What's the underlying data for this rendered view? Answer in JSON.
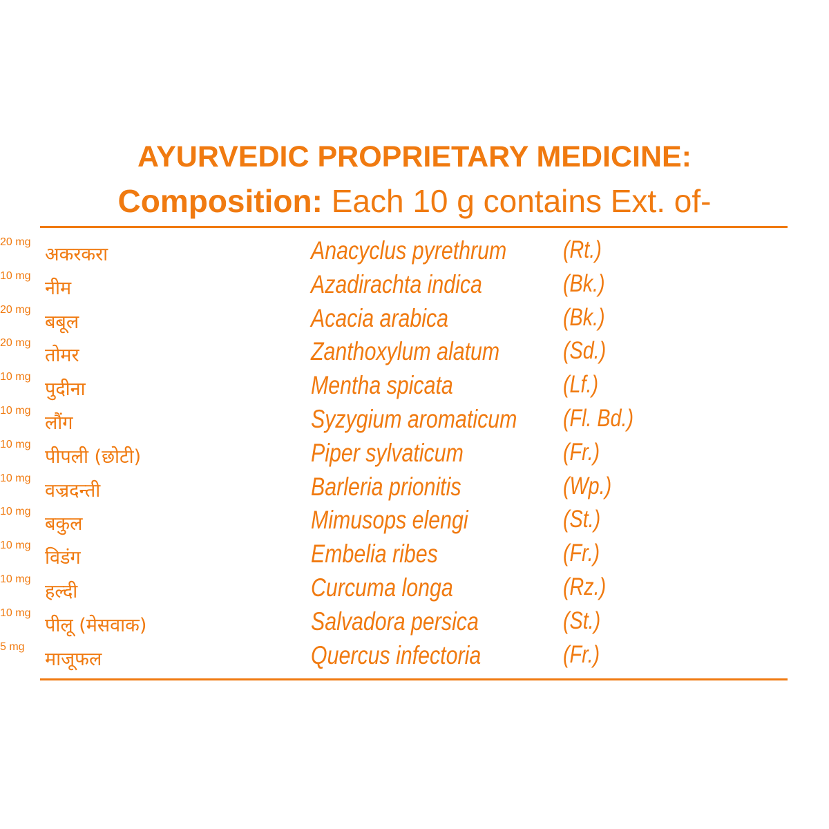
{
  "header": {
    "title": "AYURVEDIC PROPRIETARY MEDICINE:",
    "composition_label": "Composition:",
    "composition_text": " Each 10 g contains Ext. of-"
  },
  "accent_color": "#F07A10",
  "ingredients": [
    {
      "hindi": "अकरकरा",
      "latin": "Anacyclus pyrethrum",
      "part": "(Rt.)",
      "amount": "20 mg"
    },
    {
      "hindi": "नीम",
      "latin": "Azadirachta indica",
      "part": "(Bk.)",
      "amount": "10 mg"
    },
    {
      "hindi": "बबूल",
      "latin": "Acacia arabica",
      "part": "(Bk.)",
      "amount": "20 mg"
    },
    {
      "hindi": "तोमर",
      "latin": "Zanthoxylum alatum",
      "part": "(Sd.)",
      "amount": "20 mg"
    },
    {
      "hindi": "पुदीना",
      "latin": "Mentha spicata",
      "part": "(Lf.)",
      "amount": "10 mg"
    },
    {
      "hindi": "लौंग",
      "latin": "Syzygium aromaticum",
      "part": "(Fl. Bd.)",
      "amount": "10 mg"
    },
    {
      "hindi": "पीपली (छोटी)",
      "latin": "Piper sylvaticum",
      "part": "(Fr.)",
      "amount": "10 mg"
    },
    {
      "hindi": "वज्रदन्ती",
      "latin": "Barleria prionitis",
      "part": "(Wp.)",
      "amount": "10 mg"
    },
    {
      "hindi": "बकुल",
      "latin": "Mimusops elengi",
      "part": "(St.)",
      "amount": "10 mg"
    },
    {
      "hindi": "विडंग",
      "latin": "Embelia ribes",
      "part": "(Fr.)",
      "amount": "10 mg"
    },
    {
      "hindi": "हल्दी",
      "latin": "Curcuma longa",
      "part": "(Rz.)",
      "amount": "10 mg"
    },
    {
      "hindi": "पीलू (मेसवाक)",
      "latin": "Salvadora persica",
      "part": "(St.)",
      "amount": "10 mg"
    },
    {
      "hindi": "माजूफल",
      "latin": "Quercus infectoria",
      "part": "(Fr.)",
      "amount": "5 mg"
    }
  ]
}
